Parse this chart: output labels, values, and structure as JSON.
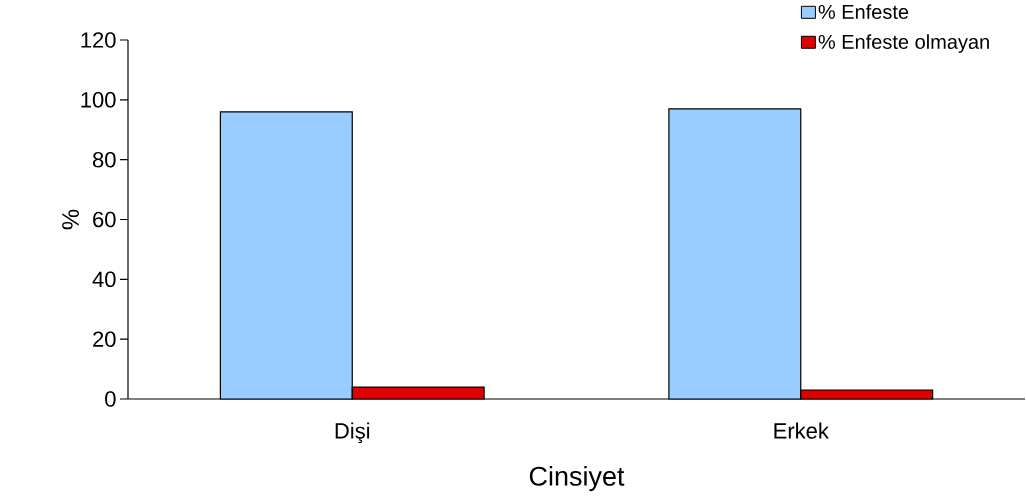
{
  "chart_data": {
    "type": "bar",
    "xlabel": "Cinsiyet",
    "ylabel": "%",
    "categories": [
      "Dişi",
      "Erkek"
    ],
    "series": [
      {
        "name": "% Enfeste",
        "color": "#99ccff",
        "values": [
          96,
          97
        ]
      },
      {
        "name": "% Enfeste olmayan",
        "color": "#e00000",
        "values": [
          4,
          3
        ]
      }
    ],
    "ylim": [
      0,
      120
    ],
    "yticks": [
      0,
      20,
      40,
      60,
      80,
      100,
      120
    ],
    "grid": false,
    "legend": "top right"
  }
}
